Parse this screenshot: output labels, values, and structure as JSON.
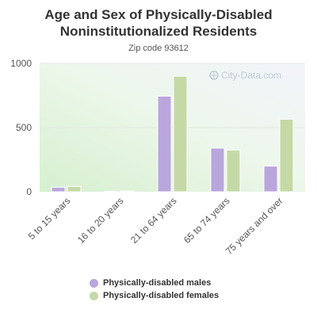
{
  "chart_data": {
    "type": "bar",
    "title": "Age and Sex of Physically-Disabled Noninstitutionalized Residents",
    "subtitle": "Zip code 93612",
    "categories": [
      "5 to 15 years",
      "16 to 20 years",
      "21 to 64 years",
      "65 to 74 years",
      "75 years and over"
    ],
    "series": [
      {
        "name": "Physically-disabled males",
        "color": "#b9a6dc",
        "values": [
          35,
          3,
          745,
          340,
          200
        ]
      },
      {
        "name": "Physically-disabled females",
        "color": "#c5d9a6",
        "values": [
          42,
          5,
          900,
          325,
          565
        ]
      }
    ],
    "ylim": [
      0,
      1000
    ],
    "yticks": [
      "0",
      "500",
      "1000"
    ],
    "grid": true,
    "legend_position": "bottom",
    "watermark": "City-Data.com"
  }
}
